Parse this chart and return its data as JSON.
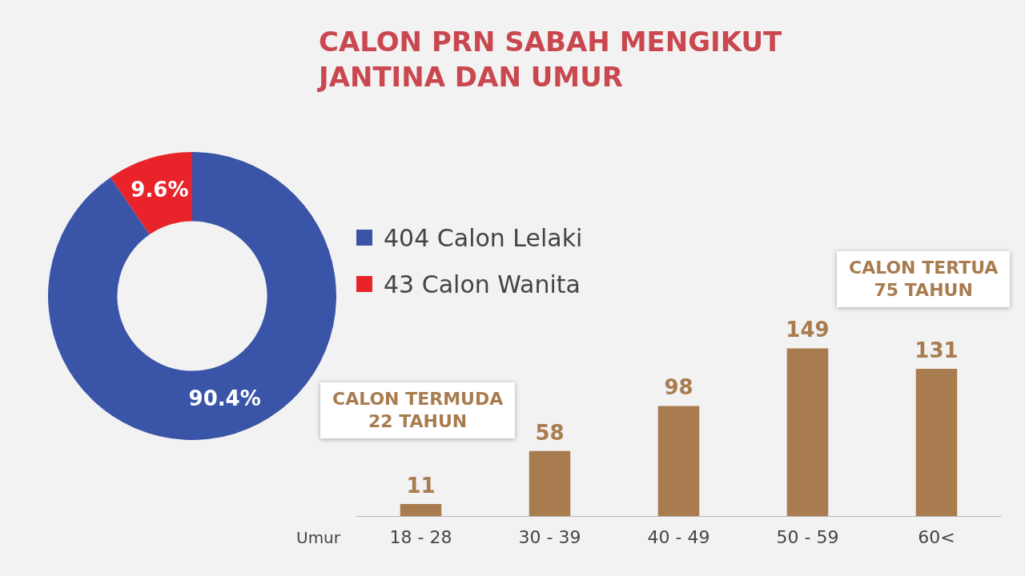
{
  "chart_data": [
    {
      "type": "donut",
      "title": "CALON PRN SABAH MENGIKUT JANTINA DAN UMUR",
      "categories": [
        "404 Calon Lelaki",
        "43 Calon Wanita"
      ],
      "values": [
        90.4,
        9.6
      ],
      "colors": [
        "#3a55a8",
        "#e8232a"
      ],
      "value_labels": [
        "90.4%",
        "9.6%"
      ],
      "legend": "right"
    },
    {
      "type": "bar",
      "xlabel": "Umur",
      "categories": [
        "18 - 28",
        "30 - 39",
        "40 - 49",
        "50 - 59",
        "60<"
      ],
      "values": [
        11,
        58,
        98,
        149,
        131
      ],
      "color": "#a87c4f",
      "data_labels": true,
      "tick_labels": "x",
      "legend": false,
      "annotations": [
        "CALON TERMUDA\n22 TAHUN",
        "CALON TERTUA\n75 TAHUN"
      ]
    }
  ]
}
